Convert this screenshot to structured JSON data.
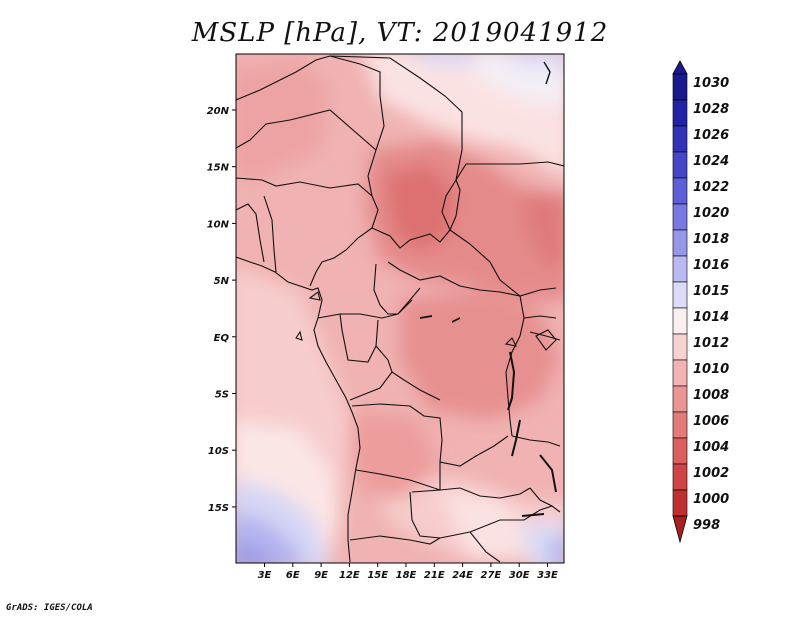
{
  "title": "MSLP [hPa], VT: 2019041912",
  "credit": "GrADS: IGES/COLA",
  "map": {
    "variable": "MSLP",
    "units": "hPa",
    "valid_time": "2019041912",
    "lat_labels": [
      "20N",
      "15N",
      "10N",
      "5N",
      "EQ",
      "5S",
      "10S",
      "15S"
    ],
    "lon_labels": [
      "3E",
      "6E",
      "9E",
      "12E",
      "15E",
      "18E",
      "21E",
      "24E",
      "27E",
      "30E",
      "33E"
    ]
  },
  "colorbar": {
    "levels": [
      {
        "label": "1030",
        "color": "#1a1a8c"
      },
      {
        "label": "1028",
        "color": "#2323a6"
      },
      {
        "label": "1026",
        "color": "#3232b8"
      },
      {
        "label": "1024",
        "color": "#4646c8"
      },
      {
        "label": "1022",
        "color": "#5e5ed6"
      },
      {
        "label": "1020",
        "color": "#7878e0"
      },
      {
        "label": "1018",
        "color": "#9898ea"
      },
      {
        "label": "1016",
        "color": "#babaf3"
      },
      {
        "label": "1015",
        "color": "#dcdcfa"
      },
      {
        "label": "1014",
        "color": "#fbf0f0"
      },
      {
        "label": "1012",
        "color": "#f8d2d2"
      },
      {
        "label": "1010",
        "color": "#f1b3b3"
      },
      {
        "label": "1008",
        "color": "#ea9494"
      },
      {
        "label": "1006",
        "color": "#e27a7a"
      },
      {
        "label": "1004",
        "color": "#db5f5f"
      },
      {
        "label": "1002",
        "color": "#cf4545"
      },
      {
        "label": "1000",
        "color": "#bf3030"
      },
      {
        "label": "998",
        "color": "#a82020"
      }
    ]
  }
}
